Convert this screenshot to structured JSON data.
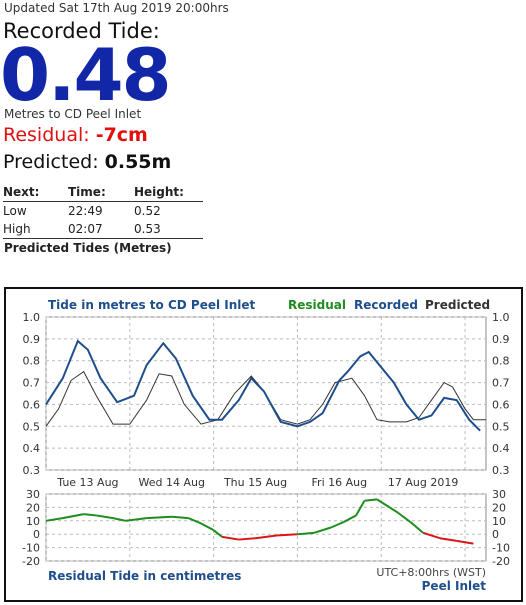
{
  "header": {
    "updated": "Updated Sat 17th Aug 2019 20:00hrs",
    "recorded_label": "Recorded Tide:",
    "recorded_value": "0.48",
    "units_text": "Metres to CD Peel Inlet",
    "residual_label": "Residual: ",
    "residual_value": "-7cm",
    "predicted_label": "Predicted: ",
    "predicted_value": "0.55m"
  },
  "next_tides": {
    "headers": [
      "Next:",
      "Time:",
      "Height:"
    ],
    "rows": [
      [
        "Low",
        "22:49",
        "0.52"
      ],
      [
        "High",
        "02:07",
        "0.53"
      ]
    ],
    "caption": "Predicted Tides (Metres)"
  },
  "colors": {
    "value_blue": "#1226a8",
    "residual_red": "#e01010",
    "recorded_line": "#1f4e8c",
    "predicted_line": "#333333",
    "residual_positive": "#1e8c1e",
    "residual_negative": "#d81818"
  },
  "chart_data": [
    {
      "type": "line",
      "title": "Tide in metres to CD Peel Inlet",
      "legend": [
        "Residual",
        "Recorded",
        "Predicted"
      ],
      "legend_placement": "top-right",
      "x_labels": [
        "Tue 13 Aug",
        "Wed 14 Aug",
        "Thu 15 Aug",
        "Fri 16 Aug",
        "17 Aug 2019"
      ],
      "ylim": [
        0.3,
        1.0
      ],
      "yticks": [
        "1.0",
        "0.9",
        "0.8",
        "0.7",
        "0.6",
        "0.5",
        "0.4",
        "0.3"
      ],
      "grid": true,
      "x_range_days": [
        0,
        5.25
      ],
      "series": [
        {
          "name": "Recorded",
          "x": [
            0,
            0.2,
            0.38,
            0.5,
            0.65,
            0.85,
            1.05,
            1.2,
            1.4,
            1.55,
            1.75,
            1.95,
            2.1,
            2.3,
            2.45,
            2.6,
            2.8,
            3.0,
            3.15,
            3.3,
            3.5,
            3.6,
            3.75,
            3.85,
            4.0,
            4.15,
            4.3,
            4.45,
            4.6,
            4.75,
            4.9,
            5.05,
            5.18
          ],
          "y": [
            0.6,
            0.72,
            0.89,
            0.85,
            0.72,
            0.61,
            0.64,
            0.78,
            0.88,
            0.81,
            0.64,
            0.53,
            0.53,
            0.62,
            0.72,
            0.66,
            0.52,
            0.5,
            0.52,
            0.56,
            0.71,
            0.75,
            0.82,
            0.84,
            0.77,
            0.7,
            0.6,
            0.53,
            0.55,
            0.63,
            0.62,
            0.53,
            0.48
          ]
        },
        {
          "name": "Predicted",
          "x": [
            0,
            0.15,
            0.3,
            0.45,
            0.6,
            0.8,
            1.0,
            1.2,
            1.35,
            1.5,
            1.65,
            1.85,
            2.05,
            2.25,
            2.45,
            2.6,
            2.8,
            3.0,
            3.15,
            3.3,
            3.45,
            3.65,
            3.8,
            3.95,
            4.1,
            4.3,
            4.45,
            4.6,
            4.75,
            4.85,
            5.0,
            5.1,
            5.25
          ],
          "y": [
            0.5,
            0.58,
            0.71,
            0.75,
            0.64,
            0.51,
            0.51,
            0.62,
            0.74,
            0.73,
            0.6,
            0.51,
            0.53,
            0.65,
            0.73,
            0.66,
            0.53,
            0.51,
            0.53,
            0.6,
            0.7,
            0.72,
            0.64,
            0.53,
            0.52,
            0.52,
            0.54,
            0.62,
            0.7,
            0.68,
            0.58,
            0.53,
            0.53
          ]
        }
      ]
    },
    {
      "type": "line",
      "title": "Residual Tide in centimetres",
      "ylim": [
        -20,
        30
      ],
      "yticks": [
        "30",
        "20",
        "10",
        "0",
        "-10",
        "-20"
      ],
      "grid": true,
      "footnote": "UTC+8:00hrs (WST)",
      "location": "Peel Inlet",
      "series": [
        {
          "name": "Residual",
          "x": [
            0,
            0.2,
            0.45,
            0.6,
            0.8,
            0.95,
            1.2,
            1.5,
            1.7,
            1.85,
            2.0,
            2.1,
            2.3,
            2.5,
            2.75,
            3.0,
            3.2,
            3.4,
            3.55,
            3.7,
            3.8,
            3.95,
            4.1,
            4.2,
            4.35,
            4.5,
            4.7,
            4.9,
            5.1
          ],
          "y": [
            10,
            12,
            15,
            14,
            12,
            10,
            12,
            13,
            12,
            8,
            3,
            -2,
            -4,
            -3,
            -1,
            0,
            1,
            5,
            9,
            14,
            25,
            26,
            20,
            16,
            9,
            1,
            -3,
            -5,
            -7
          ]
        }
      ]
    }
  ]
}
